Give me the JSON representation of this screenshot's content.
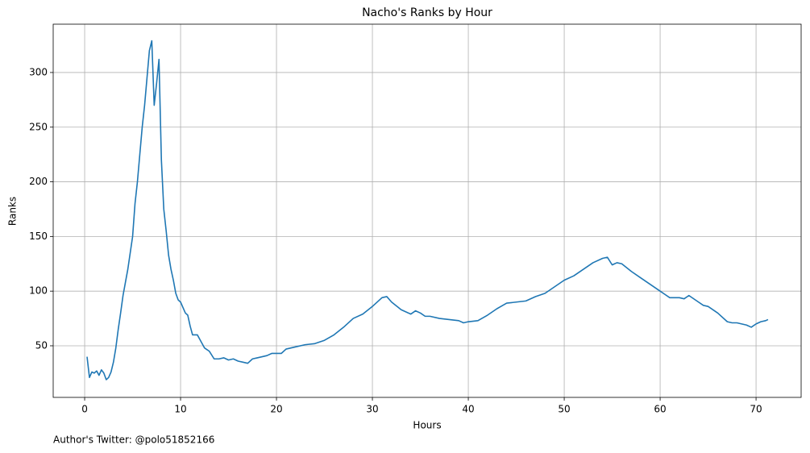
{
  "chart_data": {
    "type": "line",
    "title": "Nacho's Ranks by Hour",
    "x_label": "Hours",
    "y_label": "Ranks",
    "footnote": "Author's Twitter: @polo51852166",
    "x": [
      0.25,
      0.5,
      0.75,
      1,
      1.25,
      1.5,
      1.75,
      2,
      2.25,
      2.5,
      2.75,
      3,
      3.25,
      3.5,
      3.75,
      4,
      4.25,
      4.5,
      4.75,
      5,
      5.25,
      5.5,
      5.75,
      6,
      6.25,
      6.5,
      6.75,
      7,
      7.25,
      7.5,
      7.75,
      8,
      8.25,
      8.5,
      8.75,
      9,
      9.25,
      9.5,
      9.75,
      10,
      10.5,
      10.75,
      11,
      11.25,
      11.75,
      12,
      12.5,
      13,
      13.5,
      14,
      14.5,
      15,
      15.5,
      16,
      16.5,
      17,
      17.5,
      18,
      18.5,
      19,
      19.5,
      20,
      20.5,
      21,
      22,
      23,
      24,
      25,
      26,
      27,
      28,
      29,
      30,
      31,
      31.5,
      32,
      33,
      34,
      34.5,
      35,
      35.5,
      36,
      37,
      38,
      39,
      39.5,
      40,
      41,
      42,
      43,
      44,
      45,
      46,
      47,
      48,
      49,
      50,
      51,
      52,
      53,
      54,
      54.5,
      55,
      55.5,
      56,
      57,
      58,
      59,
      60,
      60.5,
      61,
      62,
      62.5,
      63,
      64,
      64.5,
      65,
      66,
      67,
      67.5,
      68,
      69,
      69.5,
      70,
      70.5,
      71,
      71.25
    ],
    "values": [
      40,
      21,
      26,
      25,
      27,
      23,
      28,
      25,
      19,
      21,
      26,
      35,
      48,
      65,
      80,
      96,
      108,
      120,
      135,
      150,
      180,
      200,
      225,
      250,
      270,
      295,
      320,
      329,
      270,
      290,
      312,
      220,
      175,
      155,
      133,
      120,
      110,
      98,
      92,
      90,
      80,
      78,
      68,
      60,
      60,
      56,
      48,
      45,
      38,
      38,
      39,
      37,
      38,
      36,
      35,
      34,
      38,
      39,
      40,
      41,
      43,
      43,
      43,
      47,
      49,
      51,
      52,
      55,
      60,
      67,
      75,
      79,
      86,
      94,
      95,
      90,
      83,
      79,
      82,
      80,
      77,
      77,
      75,
      74,
      73,
      71,
      72,
      73,
      78,
      84,
      89,
      90,
      91,
      95,
      98,
      104,
      110,
      114,
      120,
      126,
      130,
      131,
      124,
      126,
      125,
      118,
      112,
      106,
      100,
      97,
      94,
      94,
      93,
      96,
      90,
      87,
      86,
      80,
      72,
      71,
      71,
      69,
      67,
      70,
      72,
      73,
      74
    ],
    "color": "#1f77b4",
    "xlim": [
      -3.28,
      74.7
    ],
    "ylim": [
      2.8,
      344.2
    ],
    "xticks": [
      0,
      10,
      20,
      30,
      40,
      50,
      60,
      70
    ],
    "yticks": [
      50,
      100,
      150,
      200,
      250,
      300
    ],
    "grid": true
  }
}
